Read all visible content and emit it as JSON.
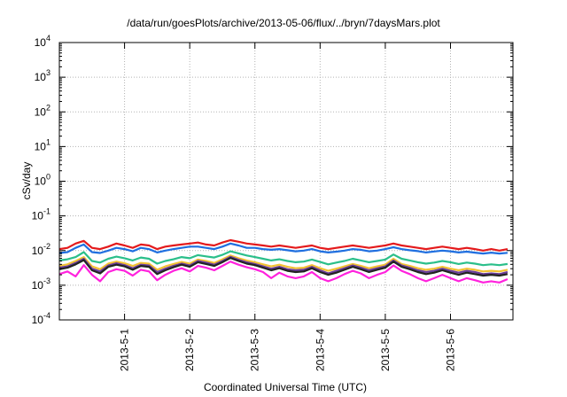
{
  "page_title": "/data/run/goesPlots/archive/2013-05-06/flux/../bryn/7daysMars.plot",
  "chart_data": {
    "type": "line",
    "title": "/data/run/goesPlots/archive/2013-05-06/flux/../bryn/7daysMars.plot",
    "xlabel": "Coordinated Universal Time (UTC)",
    "ylabel": "cSv/day",
    "yscale": "log",
    "ylim": [
      0.0001,
      10000
    ],
    "y_ticks": [
      {
        "base": "10",
        "exp": "-4"
      },
      {
        "base": "10",
        "exp": "-3"
      },
      {
        "base": "10",
        "exp": "-2"
      },
      {
        "base": "10",
        "exp": "-1"
      },
      {
        "base": "10",
        "exp": "0"
      },
      {
        "base": "10",
        "exp": "1"
      },
      {
        "base": "10",
        "exp": "2"
      },
      {
        "base": "10",
        "exp": "3"
      },
      {
        "base": "10",
        "exp": "4"
      }
    ],
    "xlim": [
      "2013-04-30 00:00",
      "2013-05-06 23:00"
    ],
    "x_tick_labels": [
      "2013-5-1",
      "2013-5-2",
      "2013-5-3",
      "2013-5-4",
      "2013-5-5",
      "2013-5-6"
    ],
    "grid": true,
    "legend": "none",
    "x": [
      "2013-04-30 00:00",
      "2013-04-30 03:00",
      "2013-04-30 06:00",
      "2013-04-30 09:00",
      "2013-04-30 12:00",
      "2013-04-30 15:00",
      "2013-04-30 18:00",
      "2013-04-30 21:00",
      "2013-05-01 00:00",
      "2013-05-01 03:00",
      "2013-05-01 06:00",
      "2013-05-01 09:00",
      "2013-05-01 12:00",
      "2013-05-01 15:00",
      "2013-05-01 18:00",
      "2013-05-01 21:00",
      "2013-05-02 00:00",
      "2013-05-02 03:00",
      "2013-05-02 06:00",
      "2013-05-02 09:00",
      "2013-05-02 12:00",
      "2013-05-02 15:00",
      "2013-05-02 18:00",
      "2013-05-02 21:00",
      "2013-05-03 00:00",
      "2013-05-03 03:00",
      "2013-05-03 06:00",
      "2013-05-03 09:00",
      "2013-05-03 12:00",
      "2013-05-03 15:00",
      "2013-05-03 18:00",
      "2013-05-03 21:00",
      "2013-05-04 00:00",
      "2013-05-04 03:00",
      "2013-05-04 06:00",
      "2013-05-04 09:00",
      "2013-05-04 12:00",
      "2013-05-04 15:00",
      "2013-05-04 18:00",
      "2013-05-04 21:00",
      "2013-05-05 00:00",
      "2013-05-05 03:00",
      "2013-05-05 06:00",
      "2013-05-05 09:00",
      "2013-05-05 12:00",
      "2013-05-05 15:00",
      "2013-05-05 18:00",
      "2013-05-05 21:00",
      "2013-05-06 00:00",
      "2013-05-06 03:00",
      "2013-05-06 06:00",
      "2013-05-06 09:00",
      "2013-05-06 12:00",
      "2013-05-06 15:00",
      "2013-05-06 18:00",
      "2013-05-06 21:00"
    ],
    "series": [
      {
        "color": "#e41a1c",
        "values": [
          0.011,
          0.012,
          0.016,
          0.019,
          0.012,
          0.011,
          0.013,
          0.016,
          0.014,
          0.012,
          0.015,
          0.014,
          0.011,
          0.013,
          0.014,
          0.015,
          0.016,
          0.017,
          0.015,
          0.014,
          0.017,
          0.02,
          0.018,
          0.016,
          0.015,
          0.014,
          0.013,
          0.014,
          0.013,
          0.012,
          0.013,
          0.014,
          0.012,
          0.011,
          0.012,
          0.013,
          0.014,
          0.013,
          0.012,
          0.013,
          0.014,
          0.016,
          0.014,
          0.013,
          0.012,
          0.011,
          0.012,
          0.013,
          0.012,
          0.011,
          0.012,
          0.011,
          0.01,
          0.011,
          0.01,
          0.011
        ]
      },
      {
        "color": "#1f6fe0",
        "values": [
          0.0085,
          0.009,
          0.012,
          0.015,
          0.009,
          0.0085,
          0.01,
          0.012,
          0.011,
          0.0095,
          0.012,
          0.011,
          0.0088,
          0.01,
          0.011,
          0.012,
          0.013,
          0.013,
          0.012,
          0.011,
          0.013,
          0.016,
          0.014,
          0.012,
          0.012,
          0.011,
          0.0105,
          0.011,
          0.0102,
          0.0095,
          0.01,
          0.011,
          0.0095,
          0.0088,
          0.0093,
          0.01,
          0.011,
          0.0105,
          0.0095,
          0.01,
          0.011,
          0.0125,
          0.011,
          0.0102,
          0.0096,
          0.0088,
          0.0094,
          0.01,
          0.0095,
          0.0088,
          0.0093,
          0.0087,
          0.0082,
          0.0087,
          0.0082,
          0.0086
        ]
      },
      {
        "color": "#2bbf8a",
        "values": [
          0.0052,
          0.0056,
          0.0065,
          0.009,
          0.005,
          0.0045,
          0.0058,
          0.0067,
          0.006,
          0.0052,
          0.0063,
          0.0058,
          0.0042,
          0.005,
          0.0056,
          0.0065,
          0.006,
          0.0074,
          0.0068,
          0.0063,
          0.0075,
          0.0095,
          0.0083,
          0.0072,
          0.0065,
          0.0058,
          0.0052,
          0.0056,
          0.005,
          0.0046,
          0.0048,
          0.0055,
          0.0047,
          0.004,
          0.0045,
          0.005,
          0.0058,
          0.0052,
          0.0046,
          0.005,
          0.0055,
          0.0077,
          0.0058,
          0.0052,
          0.0046,
          0.0042,
          0.0045,
          0.005,
          0.0046,
          0.0041,
          0.0045,
          0.0042,
          0.0038,
          0.004,
          0.0038,
          0.0041
        ]
      },
      {
        "color": "#f2c232",
        "values": [
          0.0036,
          0.004,
          0.005,
          0.0065,
          0.0035,
          0.0029,
          0.0042,
          0.0048,
          0.0043,
          0.0036,
          0.0044,
          0.0042,
          0.0028,
          0.0035,
          0.0041,
          0.0047,
          0.0042,
          0.0055,
          0.005,
          0.0044,
          0.0056,
          0.0072,
          0.006,
          0.0052,
          0.0046,
          0.004,
          0.0035,
          0.0039,
          0.0034,
          0.0031,
          0.0032,
          0.0038,
          0.0031,
          0.0026,
          0.003,
          0.0035,
          0.0041,
          0.0036,
          0.0031,
          0.0035,
          0.0039,
          0.0058,
          0.0041,
          0.0036,
          0.0031,
          0.0028,
          0.003,
          0.0034,
          0.003,
          0.0027,
          0.003,
          0.0028,
          0.0025,
          0.0026,
          0.0025,
          0.0028
        ]
      },
      {
        "color": "#6a3d9a",
        "values": [
          0.0032,
          0.0035,
          0.0044,
          0.0058,
          0.003,
          0.0025,
          0.0037,
          0.0043,
          0.0038,
          0.0031,
          0.0039,
          0.0037,
          0.0024,
          0.003,
          0.0036,
          0.0042,
          0.0037,
          0.005,
          0.0045,
          0.0039,
          0.005,
          0.0066,
          0.0054,
          0.0046,
          0.0041,
          0.0035,
          0.003,
          0.0034,
          0.0029,
          0.0027,
          0.0028,
          0.0034,
          0.0027,
          0.0022,
          0.0026,
          0.0031,
          0.0037,
          0.0032,
          0.0027,
          0.0031,
          0.0035,
          0.0052,
          0.0037,
          0.0032,
          0.0027,
          0.0024,
          0.0026,
          0.003,
          0.0026,
          0.0023,
          0.0026,
          0.0024,
          0.0021,
          0.0022,
          0.0021,
          0.0024
        ]
      },
      {
        "color": "#222222",
        "values": [
          0.0029,
          0.0032,
          0.004,
          0.0053,
          0.0027,
          0.0022,
          0.0034,
          0.0039,
          0.0035,
          0.0028,
          0.0036,
          0.0034,
          0.0021,
          0.0027,
          0.0033,
          0.0039,
          0.0034,
          0.0046,
          0.0041,
          0.0036,
          0.0046,
          0.0061,
          0.005,
          0.0042,
          0.0038,
          0.0032,
          0.0027,
          0.0031,
          0.0026,
          0.0024,
          0.0025,
          0.0031,
          0.0024,
          0.002,
          0.0023,
          0.0028,
          0.0034,
          0.0029,
          0.0024,
          0.0028,
          0.0032,
          0.0048,
          0.0034,
          0.0029,
          0.0024,
          0.0021,
          0.0023,
          0.0027,
          0.0023,
          0.002,
          0.0023,
          0.0021,
          0.0019,
          0.002,
          0.0019,
          0.0021
        ]
      },
      {
        "color": "#ff22dd",
        "values": [
          0.0021,
          0.0025,
          0.0018,
          0.0038,
          0.002,
          0.0013,
          0.0024,
          0.0029,
          0.0026,
          0.0019,
          0.0028,
          0.0025,
          0.0014,
          0.002,
          0.0026,
          0.0031,
          0.0025,
          0.0036,
          0.0032,
          0.0027,
          0.0036,
          0.0048,
          0.0039,
          0.0033,
          0.0029,
          0.0024,
          0.0016,
          0.0023,
          0.0018,
          0.0016,
          0.0018,
          0.0024,
          0.0016,
          0.0013,
          0.0016,
          0.0021,
          0.0026,
          0.0022,
          0.0016,
          0.002,
          0.0024,
          0.0037,
          0.0026,
          0.0021,
          0.0016,
          0.0013,
          0.0016,
          0.002,
          0.0016,
          0.0013,
          0.0016,
          0.0014,
          0.0012,
          0.0013,
          0.0012,
          0.0015
        ]
      }
    ]
  }
}
